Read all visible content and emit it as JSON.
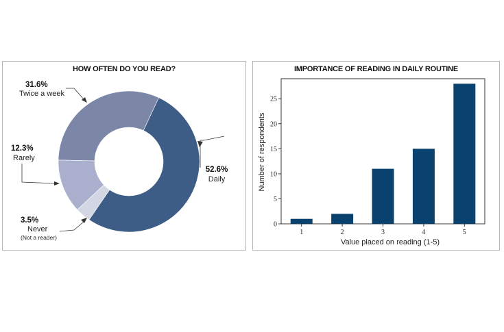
{
  "chart_data": [
    {
      "type": "pie",
      "title": "HOW OFTEN DO YOU READ?",
      "slices": [
        {
          "label": "Daily",
          "value": 52.6,
          "pct_label": "52.6%",
          "color": "#3e5d86"
        },
        {
          "label": "Never",
          "sublabel": "(Not a reader)",
          "value": 3.5,
          "pct_label": "3.5%",
          "color": "#d3d6e3"
        },
        {
          "label": "Rarely",
          "value": 12.3,
          "pct_label": "12.3%",
          "color": "#a9afcc"
        },
        {
          "label": "Twice a week",
          "value": 31.6,
          "pct_label": "31.6%",
          "color": "#7c87a8"
        }
      ]
    },
    {
      "type": "bar",
      "title": "IMPORTANCE OF READING IN DAILY ROUTINE",
      "categories": [
        "1",
        "2",
        "3",
        "4",
        "5"
      ],
      "values": [
        1,
        2,
        11,
        15,
        28
      ],
      "xlabel": "Value placed on reading (1-5)",
      "ylabel": "Number of respondents",
      "ylim": [
        0,
        29
      ],
      "yticks": [
        "0",
        "5",
        "10",
        "15",
        "20",
        "25"
      ],
      "color": "#0a426f"
    }
  ]
}
